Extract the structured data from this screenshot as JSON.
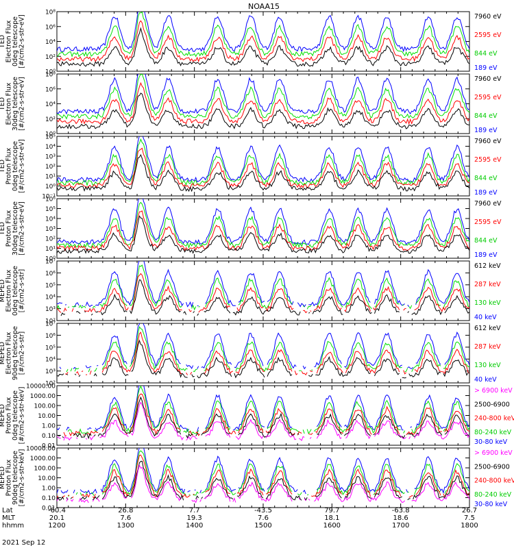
{
  "title": "NOAA15",
  "date_label": "2021 Sep 12",
  "footer": {
    "row_labels": [
      "Lat",
      "MLT",
      "hhmm"
    ],
    "columns": [
      {
        "lat": "-60.4",
        "mlt": "20.1",
        "hhmm": "1200"
      },
      {
        "lat": "26.8",
        "mlt": "7.6",
        "hhmm": "1300"
      },
      {
        "lat": "7.7",
        "mlt": "19.3",
        "hhmm": "1400"
      },
      {
        "lat": "-43.5",
        "mlt": "7.6",
        "hhmm": "1500"
      },
      {
        "lat": "79.7",
        "mlt": "18.1",
        "hhmm": "1600"
      },
      {
        "lat": "-63.8",
        "mlt": "18.6",
        "hhmm": "1700"
      },
      {
        "lat": "26.7",
        "mlt": "7.5",
        "hhmm": "1800"
      }
    ]
  },
  "chart_data": [
    {
      "type": "line",
      "ylabel": [
        "TED",
        "Electron Flux",
        "0deg telescope",
        "[#/cm2-s-str-eV]"
      ],
      "y_scale": "log",
      "ylim_exp": [
        0,
        8
      ],
      "tick_labels": [
        "10⁰",
        "10²",
        "10⁴",
        "10⁶",
        "10⁸"
      ],
      "legend": [
        {
          "label": "7960 eV",
          "color": "#000000"
        },
        {
          "label": "2595 eV",
          "color": "#ff0000"
        },
        {
          "label": "844 eV",
          "color": "#00dd00"
        },
        {
          "label": "189 eV",
          "color": "#0000ff"
        }
      ]
    },
    {
      "type": "line",
      "ylabel": [
        "TED",
        "Electron Flux",
        "30deg telescope",
        "[#/cm2-s-str-eV]"
      ],
      "y_scale": "log",
      "ylim_exp": [
        0,
        8
      ],
      "tick_labels": [
        "10⁰",
        "10²",
        "10⁴",
        "10⁶",
        "10⁸"
      ],
      "legend": [
        {
          "label": "7960 eV",
          "color": "#000000"
        },
        {
          "label": "2595 eV",
          "color": "#ff0000"
        },
        {
          "label": "844 eV",
          "color": "#00dd00"
        },
        {
          "label": "189 eV",
          "color": "#0000ff"
        }
      ]
    },
    {
      "type": "line",
      "ylabel": [
        "TED",
        "Proton Flux",
        "0deg telescope",
        "[#/cm2-s-str-eV]"
      ],
      "y_scale": "log",
      "ylim_exp": [
        -1,
        5
      ],
      "tick_labels": [
        "10⁻¹",
        "10⁰",
        "10¹",
        "10²",
        "10³",
        "10⁴",
        "10⁵"
      ],
      "legend": [
        {
          "label": "7960 eV",
          "color": "#000000"
        },
        {
          "label": "2595 eV",
          "color": "#ff0000"
        },
        {
          "label": "844 eV",
          "color": "#00dd00"
        },
        {
          "label": "189 eV",
          "color": "#0000ff"
        }
      ]
    },
    {
      "type": "line",
      "ylabel": [
        "TED",
        "Proton Flux",
        "30deg telescope",
        "[#/cm2-s-str-eV]"
      ],
      "y_scale": "log",
      "ylim_exp": [
        0,
        6
      ],
      "tick_labels": [
        "10⁰",
        "10¹",
        "10²",
        "10³",
        "10⁴",
        "10⁵",
        "10⁶"
      ],
      "legend": [
        {
          "label": "7960 eV",
          "color": "#000000"
        },
        {
          "label": "2595 eV",
          "color": "#ff0000"
        },
        {
          "label": "844 eV",
          "color": "#00dd00"
        },
        {
          "label": "189 eV",
          "color": "#0000ff"
        }
      ]
    },
    {
      "type": "line",
      "ylabel": [
        "MEPED",
        "Electron Flux",
        "0deg telescope",
        "[#/cm2-s-str]"
      ],
      "y_scale": "log",
      "ylim_exp": [
        2,
        7
      ],
      "tick_labels": [
        "10²",
        "10³",
        "10⁴",
        "10⁵",
        "10⁶",
        "10⁷"
      ],
      "legend": [
        {
          "label": "612 keV",
          "color": "#000000"
        },
        {
          "label": "287 keV",
          "color": "#ff0000"
        },
        {
          "label": "130 keV",
          "color": "#00dd00"
        },
        {
          "label": "40 keV",
          "color": "#0000ff"
        }
      ]
    },
    {
      "type": "line",
      "ylabel": [
        "MEPED",
        "Electron Flux",
        "90deg telescope",
        "[#/cm2-s-str]"
      ],
      "y_scale": "log",
      "ylim_exp": [
        2,
        7
      ],
      "tick_labels": [
        "10²",
        "10³",
        "10⁴",
        "10⁵",
        "10⁶",
        "10⁷"
      ],
      "legend": [
        {
          "label": "612 keV",
          "color": "#000000"
        },
        {
          "label": "287 keV",
          "color": "#ff0000"
        },
        {
          "label": "130 keV",
          "color": "#00dd00"
        },
        {
          "label": "40 keV",
          "color": "#0000ff"
        }
      ]
    },
    {
      "type": "line",
      "ylabel": [
        "MEPED",
        "Proton Flux",
        "0deg telescope",
        "[#/cm2-s-str-keV]"
      ],
      "y_scale": "log",
      "ylim_exp": [
        -2,
        4
      ],
      "tick_labels": [
        "0.01",
        "0.10",
        "1.00",
        "10.00",
        "100.00",
        "1000.00",
        "10000.00"
      ],
      "legend": [
        {
          "label": "> 6900 keV",
          "color": "#ff00ff"
        },
        {
          "label": "2500-6900",
          "color": "#000000"
        },
        {
          "label": "240-800 keV",
          "color": "#ff0000"
        },
        {
          "label": "80-240 keV",
          "color": "#00dd00"
        },
        {
          "label": "30-80 keV",
          "color": "#0000ff"
        }
      ]
    },
    {
      "type": "line",
      "ylabel": [
        "MEPED",
        "Proton Flux",
        "90deg telescope",
        "[#/cm2-s-str-keV]"
      ],
      "y_scale": "log",
      "ylim_exp": [
        -2,
        4
      ],
      "tick_labels": [
        "0.01",
        "0.10",
        "1.00",
        "10.00",
        "100.00",
        "1000.00",
        "10000.00"
      ],
      "legend": [
        {
          "label": "> 6900 keV",
          "color": "#ff00ff"
        },
        {
          "label": "2500-6900",
          "color": "#000000"
        },
        {
          "label": "240-800 keV",
          "color": "#ff0000"
        },
        {
          "label": "80-240 keV",
          "color": "#00dd00"
        },
        {
          "label": "30-80 keV",
          "color": "#0000ff"
        }
      ]
    }
  ]
}
